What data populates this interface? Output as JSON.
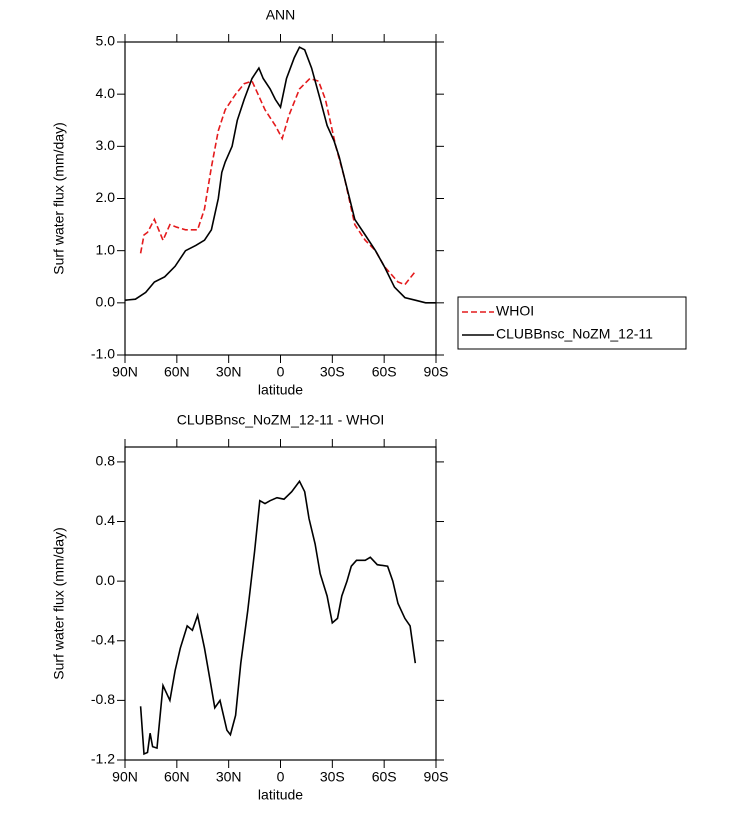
{
  "chart_data": [
    {
      "type": "line",
      "title": "ANN",
      "xlabel": "latitude",
      "ylabel": "Surf water flux (mm/day)",
      "xlim": [
        90,
        -90
      ],
      "xticks": [
        {
          "value": 90,
          "label": "90N"
        },
        {
          "value": 60,
          "label": "60N"
        },
        {
          "value": 30,
          "label": "30N"
        },
        0,
        {
          "value": -30,
          "label": "30S"
        },
        {
          "value": -60,
          "label": "60S"
        },
        {
          "value": -90,
          "label": "90S"
        }
      ],
      "ylim": [
        -1,
        5
      ],
      "yticks": [
        {
          "value": -1,
          "label": "-1.0"
        },
        {
          "value": 0,
          "label": "0.0"
        },
        {
          "value": 1,
          "label": "1.0"
        },
        {
          "value": 2,
          "label": "2.0"
        },
        {
          "value": 3,
          "label": "3.0"
        },
        {
          "value": 4,
          "label": "4.0"
        },
        {
          "value": 5,
          "label": "5.0"
        }
      ],
      "legend": "right-outside",
      "series": [
        {
          "name": "WHOI",
          "color": "#e41a1c",
          "style": "dashed",
          "x": [
            81,
            79,
            77,
            73,
            68,
            64,
            60,
            55,
            48,
            44,
            40,
            36,
            32,
            26,
            21,
            16.5,
            13,
            9,
            3,
            -1,
            -5,
            -11,
            -17,
            -22,
            -26,
            -32,
            -37,
            -43,
            -49,
            -55,
            -60,
            -68,
            -72,
            -78
          ],
          "values": [
            0.95,
            1.3,
            1.35,
            1.6,
            1.2,
            1.5,
            1.45,
            1.4,
            1.4,
            1.8,
            2.6,
            3.3,
            3.7,
            4.0,
            4.2,
            4.25,
            4.0,
            3.7,
            3.4,
            3.15,
            3.6,
            4.1,
            4.3,
            4.25,
            3.9,
            3.0,
            2.4,
            1.5,
            1.2,
            1.0,
            0.7,
            0.4,
            0.35,
            0.6
          ]
        },
        {
          "name": "CLUBBnsc_NoZM_12-11",
          "color": "#000000",
          "style": "solid",
          "x": [
            90,
            84,
            78,
            73,
            67,
            61,
            55,
            49,
            44,
            40,
            36,
            34,
            32,
            28,
            25,
            21,
            16.5,
            12.5,
            10,
            6,
            3,
            0,
            -3.5,
            -8,
            -11,
            -14,
            -18,
            -23,
            -27,
            -31,
            -34,
            -38.5,
            -43,
            -49,
            -55,
            -60,
            -66,
            -72,
            -78,
            -84,
            -90
          ],
          "values": [
            0.05,
            0.07,
            0.2,
            0.4,
            0.5,
            0.7,
            1.0,
            1.1,
            1.2,
            1.4,
            2.0,
            2.5,
            2.7,
            3.0,
            3.5,
            3.9,
            4.3,
            4.5,
            4.3,
            4.1,
            3.9,
            3.75,
            4.3,
            4.7,
            4.9,
            4.85,
            4.5,
            3.9,
            3.4,
            3.1,
            2.8,
            2.2,
            1.6,
            1.3,
            1.0,
            0.7,
            0.3,
            0.1,
            0.05,
            0.0,
            0.0
          ]
        }
      ]
    },
    {
      "type": "line",
      "title": "CLUBBnsc_NoZM_12-11 - WHOI",
      "xlabel": "latitude",
      "ylabel": "Surf water flux (mm/day)",
      "xlim": [
        90,
        -90
      ],
      "xticks": [
        {
          "value": 90,
          "label": "90N"
        },
        {
          "value": 60,
          "label": "60N"
        },
        {
          "value": 30,
          "label": "30N"
        },
        0,
        {
          "value": -30,
          "label": "30S"
        },
        {
          "value": -60,
          "label": "60S"
        },
        {
          "value": -90,
          "label": "90S"
        }
      ],
      "ylim": [
        -1.2,
        0.9
      ],
      "yticks": [
        -1.2,
        -0.8,
        -0.4,
        {
          "value": 0,
          "label": "0.0"
        },
        0.4,
        0.8
      ],
      "color": "#000000",
      "x": [
        81,
        79,
        77,
        75.5,
        74,
        71.5,
        68,
        64,
        61,
        58,
        54,
        51,
        48,
        44,
        41,
        38,
        35,
        31,
        29,
        26,
        23,
        19,
        15,
        12,
        9,
        6,
        2,
        -2,
        -6.5,
        -11,
        -14,
        -16.5,
        -20,
        -23,
        -27,
        -30,
        -33,
        -35.5,
        -38.5,
        -41,
        -44,
        -49,
        -52,
        -56,
        -62,
        -65,
        -68,
        -72,
        -75,
        -78
      ],
      "values": [
        -0.84,
        -1.16,
        -1.15,
        -1.02,
        -1.11,
        -1.12,
        -0.7,
        -0.8,
        -0.6,
        -0.45,
        -0.3,
        -0.33,
        -0.23,
        -0.45,
        -0.65,
        -0.85,
        -0.8,
        -1.0,
        -1.03,
        -0.9,
        -0.55,
        -0.2,
        0.2,
        0.54,
        0.52,
        0.54,
        0.56,
        0.55,
        0.6,
        0.67,
        0.6,
        0.42,
        0.25,
        0.05,
        -0.1,
        -0.28,
        -0.25,
        -0.1,
        0.0,
        0.1,
        0.14,
        0.14,
        0.16,
        0.11,
        0.1,
        0.0,
        -0.15,
        -0.25,
        -0.3,
        -0.55
      ]
    }
  ]
}
